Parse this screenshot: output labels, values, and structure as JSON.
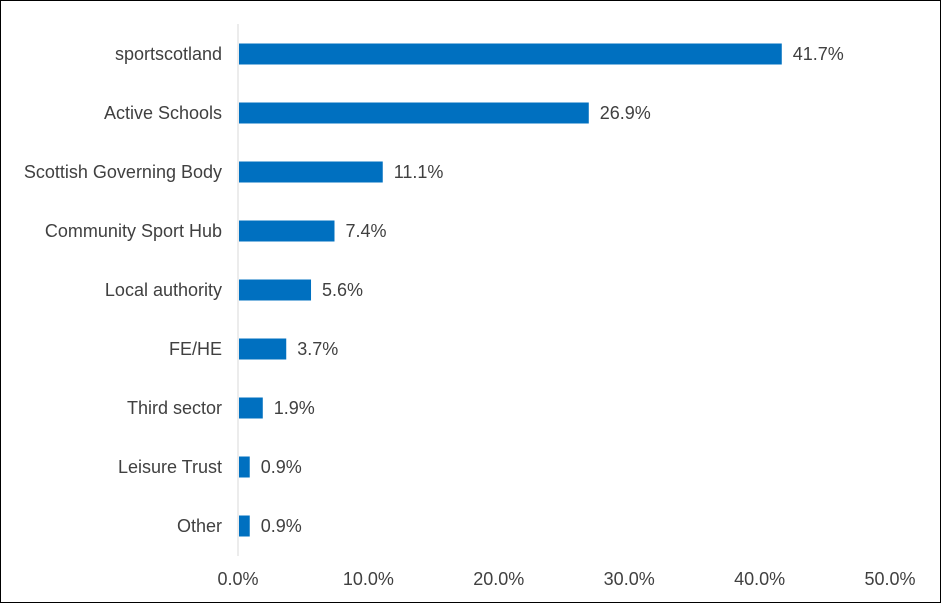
{
  "chart_data": {
    "type": "bar",
    "orientation": "horizontal",
    "title": "",
    "xlabel": "",
    "ylabel": "",
    "categories": [
      "sportscotland",
      "Active Schools",
      "Scottish Governing Body",
      "Community Sport Hub",
      "Local authority",
      "FE/HE",
      "Third sector",
      "Leisure Trust",
      "Other"
    ],
    "values": [
      41.7,
      26.9,
      11.1,
      7.4,
      5.6,
      3.7,
      1.9,
      0.9,
      0.9
    ],
    "data_labels": [
      "41.7%",
      "26.9%",
      "11.1%",
      "7.4%",
      "5.6%",
      "3.7%",
      "1.9%",
      "0.9%",
      "0.9%"
    ],
    "xlim": [
      0,
      50
    ],
    "x_ticks": [
      0,
      10,
      20,
      30,
      40,
      50
    ],
    "x_tick_labels": [
      "0.0%",
      "10.0%",
      "20.0%",
      "30.0%",
      "40.0%",
      "50.0%"
    ],
    "grid": false,
    "legend": "none",
    "colors": {
      "bar": "#0070C0",
      "text": "#404040",
      "axis": "#D9D9D9",
      "border": "#000000"
    }
  }
}
